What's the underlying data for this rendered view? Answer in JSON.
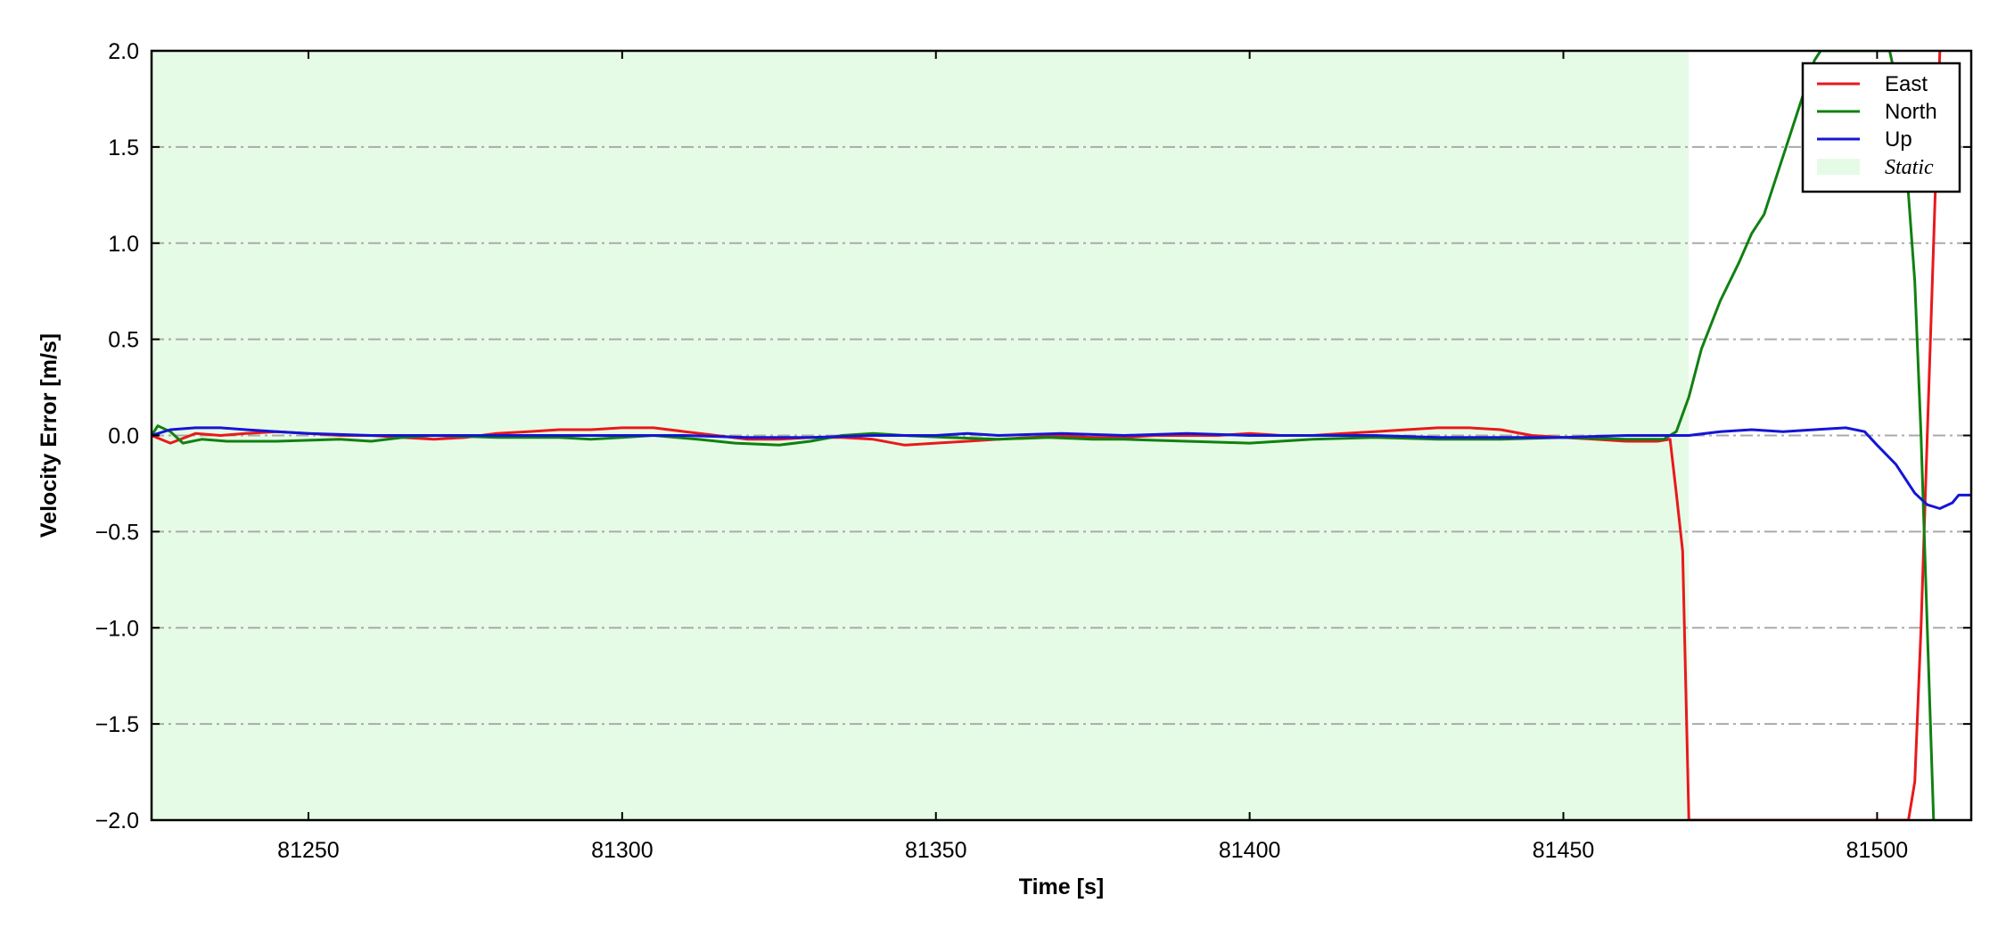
{
  "chart_data": {
    "type": "line",
    "title": "",
    "xlabel": "Time [s]",
    "ylabel": "Velocity Error [m/s]",
    "xlim": [
      81225,
      81515
    ],
    "ylim": [
      -2.0,
      2.0
    ],
    "x_ticks": [
      81250,
      81300,
      81350,
      81400,
      81450,
      81500
    ],
    "y_ticks": [
      -2.0,
      -1.5,
      -1.0,
      -0.5,
      0.0,
      0.5,
      1.0,
      1.5,
      2.0
    ],
    "x_tick_labels": [
      "81250",
      "81300",
      "81350",
      "81400",
      "81450",
      "81500"
    ],
    "y_tick_labels": [
      "−2.0",
      "−1.5",
      "−1.0",
      "−0.5",
      "0.0",
      "0.5",
      "1.0",
      "1.5",
      "2.0"
    ],
    "grid": {
      "y": true,
      "x": false,
      "style": "dash-dot",
      "color": "#aaaaaa"
    },
    "legend_position": "top-right",
    "shaded_regions": [
      {
        "name": "Static",
        "x_start": 81225,
        "x_end": 81470,
        "color": "#e6fbe6"
      }
    ],
    "series": [
      {
        "name": "East",
        "color": "#e8191c",
        "points": [
          [
            81225,
            0.0
          ],
          [
            81228,
            -0.04
          ],
          [
            81232,
            0.01
          ],
          [
            81236,
            0.0
          ],
          [
            81240,
            0.01
          ],
          [
            81245,
            0.02
          ],
          [
            81250,
            0.01
          ],
          [
            81255,
            0.0
          ],
          [
            81260,
            0.0
          ],
          [
            81265,
            -0.01
          ],
          [
            81270,
            -0.02
          ],
          [
            81275,
            -0.01
          ],
          [
            81280,
            0.01
          ],
          [
            81285,
            0.02
          ],
          [
            81290,
            0.03
          ],
          [
            81295,
            0.03
          ],
          [
            81300,
            0.04
          ],
          [
            81305,
            0.04
          ],
          [
            81310,
            0.02
          ],
          [
            81315,
            0.0
          ],
          [
            81320,
            -0.02
          ],
          [
            81325,
            -0.02
          ],
          [
            81330,
            -0.01
          ],
          [
            81335,
            -0.01
          ],
          [
            81340,
            -0.02
          ],
          [
            81345,
            -0.05
          ],
          [
            81350,
            -0.04
          ],
          [
            81355,
            -0.03
          ],
          [
            81360,
            -0.02
          ],
          [
            81365,
            -0.01
          ],
          [
            81370,
            0.0
          ],
          [
            81375,
            -0.01
          ],
          [
            81380,
            -0.01
          ],
          [
            81385,
            0.0
          ],
          [
            81390,
            0.0
          ],
          [
            81395,
            0.0
          ],
          [
            81400,
            0.01
          ],
          [
            81405,
            0.0
          ],
          [
            81410,
            0.0
          ],
          [
            81415,
            0.01
          ],
          [
            81420,
            0.02
          ],
          [
            81425,
            0.03
          ],
          [
            81430,
            0.04
          ],
          [
            81435,
            0.04
          ],
          [
            81440,
            0.03
          ],
          [
            81445,
            0.0
          ],
          [
            81450,
            -0.01
          ],
          [
            81455,
            -0.02
          ],
          [
            81460,
            -0.03
          ],
          [
            81465,
            -0.03
          ],
          [
            81467,
            -0.02
          ],
          [
            81468,
            -0.3
          ],
          [
            81469,
            -0.6
          ],
          [
            81470,
            -2.0
          ],
          [
            81505,
            -2.0
          ],
          [
            81506,
            -1.8
          ],
          [
            81507,
            -1.0
          ],
          [
            81508,
            0.0
          ],
          [
            81509,
            1.0
          ],
          [
            81510,
            2.0
          ]
        ]
      },
      {
        "name": "North",
        "color": "#118011",
        "points": [
          [
            81225,
            0.0
          ],
          [
            81226,
            0.05
          ],
          [
            81228,
            0.02
          ],
          [
            81230,
            -0.04
          ],
          [
            81233,
            -0.02
          ],
          [
            81237,
            -0.03
          ],
          [
            81245,
            -0.03
          ],
          [
            81255,
            -0.02
          ],
          [
            81260,
            -0.03
          ],
          [
            81265,
            -0.01
          ],
          [
            81270,
            0.0
          ],
          [
            81280,
            -0.01
          ],
          [
            81290,
            -0.01
          ],
          [
            81295,
            -0.02
          ],
          [
            81300,
            -0.01
          ],
          [
            81305,
            0.0
          ],
          [
            81312,
            -0.02
          ],
          [
            81318,
            -0.04
          ],
          [
            81325,
            -0.05
          ],
          [
            81330,
            -0.03
          ],
          [
            81335,
            0.0
          ],
          [
            81340,
            0.01
          ],
          [
            81345,
            0.0
          ],
          [
            81352,
            -0.01
          ],
          [
            81360,
            -0.02
          ],
          [
            81368,
            -0.01
          ],
          [
            81375,
            -0.02
          ],
          [
            81380,
            -0.02
          ],
          [
            81390,
            -0.03
          ],
          [
            81400,
            -0.04
          ],
          [
            81410,
            -0.02
          ],
          [
            81420,
            -0.01
          ],
          [
            81430,
            -0.02
          ],
          [
            81440,
            -0.02
          ],
          [
            81450,
            -0.01
          ],
          [
            81460,
            -0.02
          ],
          [
            81466,
            -0.02
          ],
          [
            81468,
            0.02
          ],
          [
            81470,
            0.2
          ],
          [
            81472,
            0.45
          ],
          [
            81475,
            0.7
          ],
          [
            81478,
            0.9
          ],
          [
            81480,
            1.05
          ],
          [
            81482,
            1.15
          ],
          [
            81484,
            1.35
          ],
          [
            81486,
            1.55
          ],
          [
            81488,
            1.75
          ],
          [
            81490,
            1.95
          ],
          [
            81491,
            2.0
          ],
          [
            81502,
            2.0
          ],
          [
            81504,
            1.7
          ],
          [
            81506,
            0.8
          ],
          [
            81507,
            0.0
          ],
          [
            81508,
            -1.0
          ],
          [
            81509,
            -2.0
          ]
        ]
      },
      {
        "name": "Up",
        "color": "#1515d5",
        "points": [
          [
            81225,
            0.0
          ],
          [
            81228,
            0.03
          ],
          [
            81232,
            0.04
          ],
          [
            81236,
            0.04
          ],
          [
            81240,
            0.03
          ],
          [
            81245,
            0.02
          ],
          [
            81250,
            0.01
          ],
          [
            81260,
            0.0
          ],
          [
            81270,
            0.0
          ],
          [
            81280,
            0.0
          ],
          [
            81290,
            0.0
          ],
          [
            81300,
            0.0
          ],
          [
            81310,
            0.0
          ],
          [
            81320,
            -0.01
          ],
          [
            81330,
            -0.01
          ],
          [
            81340,
            0.0
          ],
          [
            81350,
            0.0
          ],
          [
            81355,
            0.01
          ],
          [
            81360,
            0.0
          ],
          [
            81370,
            0.01
          ],
          [
            81380,
            0.0
          ],
          [
            81390,
            0.01
          ],
          [
            81400,
            0.0
          ],
          [
            81410,
            0.0
          ],
          [
            81420,
            0.0
          ],
          [
            81430,
            -0.01
          ],
          [
            81440,
            -0.01
          ],
          [
            81450,
            -0.01
          ],
          [
            81460,
            0.0
          ],
          [
            81470,
            0.0
          ],
          [
            81475,
            0.02
          ],
          [
            81480,
            0.03
          ],
          [
            81485,
            0.02
          ],
          [
            81490,
            0.03
          ],
          [
            81495,
            0.04
          ],
          [
            81498,
            0.02
          ],
          [
            81500,
            -0.05
          ],
          [
            81503,
            -0.15
          ],
          [
            81506,
            -0.3
          ],
          [
            81508,
            -0.36
          ],
          [
            81510,
            -0.38
          ],
          [
            81512,
            -0.35
          ],
          [
            81513,
            -0.31
          ],
          [
            81515,
            -0.31
          ]
        ]
      }
    ]
  }
}
